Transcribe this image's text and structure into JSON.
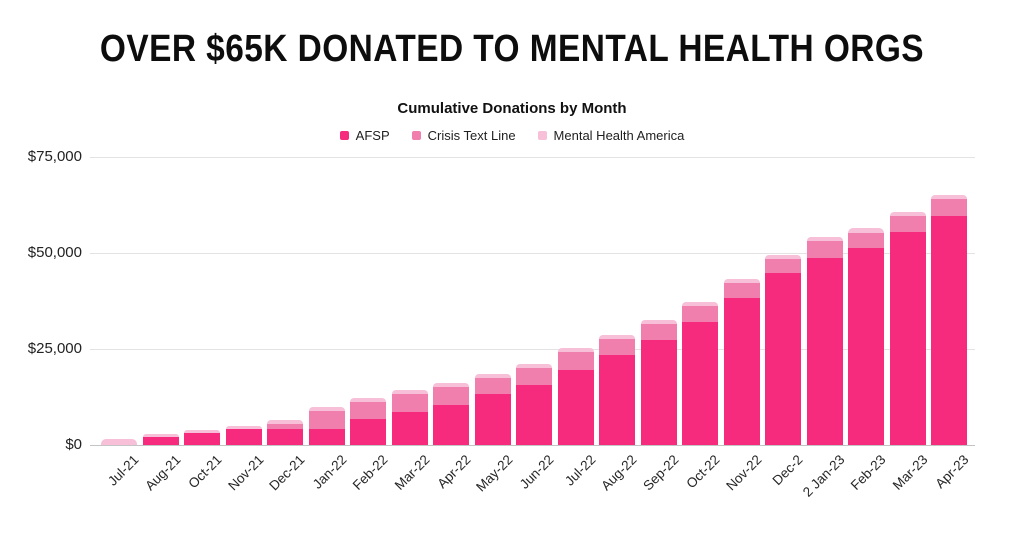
{
  "header": {
    "title": "OVER $65K DONATED TO MENTAL HEALTH ORGS",
    "subtitle": "Cumulative Donations by Month"
  },
  "colors": {
    "afsp": "#F72B7D",
    "crisis_text_line": "#F07FAE",
    "mental_health_america": "#F7BFD8",
    "gridline": "#E3E3E3",
    "axis_line": "#C4C4C4",
    "title_text": "#0D0D0D"
  },
  "chart_data": {
    "type": "bar",
    "stacked": true,
    "title": "Cumulative Donations by Month",
    "xlabel": "",
    "ylabel": "",
    "ylim": [
      0,
      75000
    ],
    "grid": true,
    "legend_position": "top",
    "categories": [
      "Jul-21",
      "Aug-21",
      "Oct-21",
      "Nov-21",
      "Dec-21",
      "Jan-22",
      "Feb-22",
      "Mar-22",
      "Apr-22",
      "May-22",
      "Jun-22",
      "Jul-22",
      "Aug-22",
      "Sep-22",
      "Oct-22",
      "Nov-22",
      "Dec-2",
      "2 Jan-23",
      "Feb-23",
      "Mar-23",
      "Apr-23"
    ],
    "series": [
      {
        "name": "AFSP",
        "color": "#F72B7D",
        "values": [
          0,
          2200,
          3100,
          4100,
          4200,
          4300,
          6800,
          8500,
          10300,
          13400,
          15700,
          19500,
          23400,
          27400,
          32000,
          38400,
          44700,
          48800,
          51300,
          55500,
          59600
        ]
      },
      {
        "name": "Crisis Text Line",
        "color": "#F07FAE",
        "values": [
          0,
          0,
          0,
          0,
          1400,
          4500,
          4500,
          4800,
          4800,
          4000,
          4300,
          4600,
          4200,
          4000,
          4200,
          3700,
          3700,
          4300,
          4000,
          4100,
          4400
        ]
      },
      {
        "name": "Mental Health America",
        "color": "#F7BFD8",
        "values": [
          1500,
          800,
          800,
          900,
          900,
          1000,
          1000,
          1000,
          1100,
          1100,
          1100,
          1200,
          1100,
          1100,
          1100,
          1100,
          1100,
          1100,
          1100,
          1100,
          1100
        ]
      }
    ],
    "stacked_totals": [
      1500,
      3000,
      3900,
      5000,
      6500,
      9800,
      12300,
      14300,
      16200,
      18500,
      21100,
      25300,
      28700,
      32500,
      37300,
      43200,
      49500,
      54200,
      56400,
      60700,
      65100
    ],
    "y_ticks": [
      {
        "value": 0,
        "label": "$0"
      },
      {
        "value": 25000,
        "label": "$25,000"
      },
      {
        "value": 50000,
        "label": "$50,000"
      },
      {
        "value": 75000,
        "label": "$75,000"
      }
    ]
  }
}
